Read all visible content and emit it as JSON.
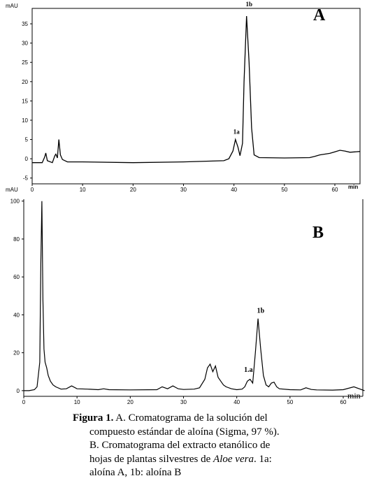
{
  "chart_data": [
    {
      "type": "line",
      "panel_label": "A",
      "y_unit": "mAU",
      "x_unit": "min",
      "xlim": [
        0,
        65
      ],
      "ylim": [
        -6.5,
        39
      ],
      "x_ticks": [
        0,
        10,
        20,
        30,
        40,
        50,
        60
      ],
      "y_ticks": [
        -5,
        0,
        5,
        10,
        15,
        20,
        25,
        30,
        35
      ],
      "x_tick_labels": [
        "0",
        "10",
        "20",
        "30",
        "40",
        "50",
        "60"
      ],
      "y_tick_labels": [
        "-5",
        "0",
        "5",
        "10",
        "15",
        "20",
        "25",
        "30",
        "35"
      ],
      "annotations": [
        {
          "text": "1a",
          "x": 40.5,
          "y": 6.5
        },
        {
          "text": "1b",
          "x": 43.0,
          "y": 39.5
        }
      ],
      "series": [
        {
          "x": [
            0,
            2,
            2.5,
            2.7,
            3,
            4,
            4.5,
            4.7,
            5,
            5.3,
            5.6,
            6,
            7,
            10,
            20,
            30,
            38,
            39,
            39.8,
            40.3,
            40.8,
            41.2,
            41.7,
            42.0,
            42.5,
            43.0,
            43.5,
            44.0,
            45,
            50,
            55,
            56,
            57,
            58,
            59,
            60,
            61,
            62,
            63,
            65
          ],
          "y": [
            -1,
            -1,
            0.5,
            1.5,
            -0.5,
            -1,
            0.8,
            1.2,
            0.2,
            5,
            1,
            -0.2,
            -0.8,
            -0.8,
            -1.0,
            -0.8,
            -0.5,
            0,
            2,
            5.0,
            3,
            0.8,
            4,
            20,
            37,
            25,
            8,
            1,
            0.3,
            0.2,
            0.3,
            0.6,
            1,
            1.2,
            1.4,
            1.8,
            2.2,
            2.0,
            1.7,
            1.9
          ]
        }
      ]
    },
    {
      "type": "line",
      "panel_label": "B",
      "y_unit": "mAU",
      "x_unit": "min",
      "xlim": [
        0,
        65
      ],
      "ylim": [
        -3,
        101
      ],
      "x_ticks": [
        0,
        10,
        20,
        30,
        40,
        50,
        60
      ],
      "y_ticks": [
        0,
        20,
        40,
        60,
        80,
        100
      ],
      "x_tick_labels": [
        "0",
        "10",
        "20",
        "30",
        "40",
        "50",
        "60"
      ],
      "y_tick_labels": [
        "0",
        "20",
        "40",
        "60",
        "80",
        "100"
      ],
      "annotations": [
        {
          "text": "1.a",
          "x": 42.2,
          "y": 10
        },
        {
          "text": "1b",
          "x": 44.5,
          "y": 41
        }
      ],
      "series": [
        {
          "x": [
            0,
            1,
            2,
            2.5,
            3,
            3.2,
            3.4,
            3.6,
            3.8,
            4,
            4.3,
            4.6,
            5,
            5.5,
            6,
            7,
            8,
            9,
            10,
            12,
            14,
            15,
            16,
            20,
            25,
            26,
            27,
            28,
            29,
            30,
            32,
            33,
            34,
            34.5,
            35,
            35.5,
            36,
            36.5,
            37,
            37.5,
            38,
            39,
            40,
            41,
            41.5,
            42,
            42.5,
            43,
            43.5,
            44,
            44.5,
            45,
            45.5,
            46,
            46.5,
            47,
            47.5,
            48,
            50,
            52,
            53,
            54,
            55,
            58,
            60,
            62,
            63,
            64
          ],
          "y": [
            0,
            0,
            0.5,
            2,
            15,
            67,
            100,
            48,
            22,
            15,
            12,
            8,
            5,
            3,
            2,
            0.8,
            1,
            2.5,
            1,
            0.8,
            0.5,
            1,
            0.5,
            0.4,
            0.5,
            2,
            1,
            2.5,
            1,
            0.6,
            0.8,
            1.5,
            6,
            12,
            14,
            10,
            13,
            7,
            5,
            3,
            2,
            1,
            0.5,
            0.8,
            2,
            5,
            6,
            4,
            20,
            38,
            22,
            8,
            3,
            2,
            4,
            4.5,
            2,
            1,
            0.5,
            0.4,
            1.5,
            0.6,
            0.4,
            0.3,
            0.5,
            2,
            1,
            0
          ]
        }
      ]
    }
  ],
  "caption": {
    "lead": "Figura 1.",
    "lines": [
      " A. Cromatograma de la solución del",
      "compuesto estándar de aloína (Sigma, 97 %).",
      "B. Cromatograma del extracto etanólico de",
      "hojas de plantas silvestres de ",
      "aloína A, 1b: aloína B"
    ],
    "italic": "Aloe vera",
    "after_italic": ". 1a:"
  },
  "colors": {
    "trace": "#000000",
    "axis": "#000000",
    "background": "#ffffff"
  }
}
